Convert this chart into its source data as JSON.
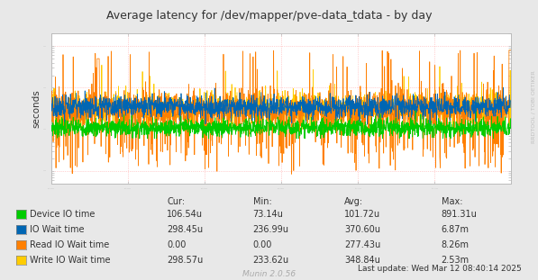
{
  "title": "Average latency for /dev/mapper/pve-data_tdata - by day",
  "ylabel": "seconds",
  "xlabel_ticks": [
    "wto 00:00",
    "wto 06:00",
    "wto 12:00",
    "wto 18:00",
    "śro 00:00",
    "śro 06:00"
  ],
  "bg_color": "#e8e8e8",
  "plot_bg_color": "#ffffff",
  "grid_color": "#e0e0e0",
  "watermark": "RRDTOOL / TOBI OETIKER",
  "munin_version": "Munin 2.0.56",
  "last_update": "Last update: Wed Mar 12 08:40:14 2025",
  "legend": [
    {
      "label": "Device IO time",
      "color": "#00cc00",
      "cur": "106.54u",
      "min": "73.14u",
      "avg": "101.72u",
      "max": "891.31u"
    },
    {
      "label": "IO Wait time",
      "color": "#0066b3",
      "cur": "298.45u",
      "min": "236.99u",
      "avg": "370.60u",
      "max": "6.87m"
    },
    {
      "label": "Read IO Wait time",
      "color": "#ff7f00",
      "cur": "0.00",
      "min": "0.00",
      "avg": "277.43u",
      "max": "8.26m"
    },
    {
      "label": "Write IO Wait time",
      "color": "#ffcc00",
      "cur": "298.57u",
      "min": "233.62u",
      "avg": "348.84u",
      "max": "2.53m"
    }
  ],
  "colors": {
    "device_io": "#00cc00",
    "io_wait": "#0066b3",
    "read_io": "#ff7f00",
    "write_io": "#ffcc00"
  }
}
